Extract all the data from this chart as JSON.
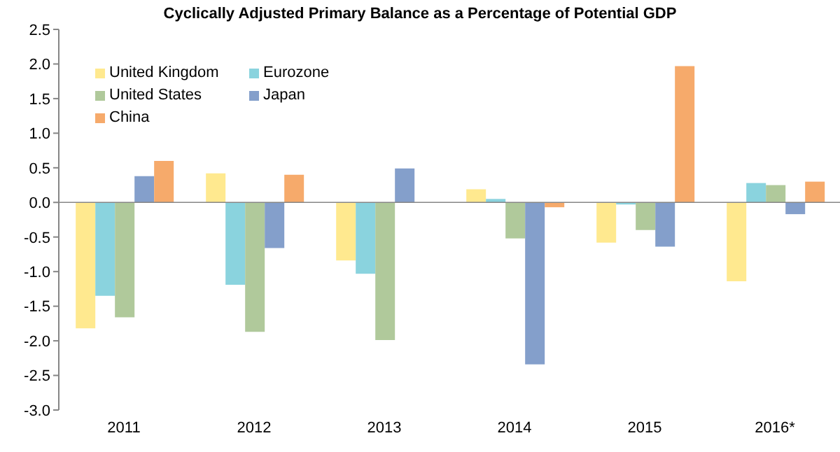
{
  "chart_data": {
    "type": "bar",
    "title": "Cyclically Adjusted Primary Balance as a Percentage of Potential GDP",
    "categories": [
      "2011",
      "2012",
      "2013",
      "2014",
      "2015",
      "2016*"
    ],
    "series": [
      {
        "name": "United Kingdom",
        "color": "#ffe98f",
        "values": [
          -1.82,
          0.42,
          -0.84,
          0.19,
          -0.58,
          -1.14
        ]
      },
      {
        "name": "Eurozone",
        "color": "#8ad3de",
        "values": [
          -1.35,
          -1.19,
          -1.03,
          0.05,
          -0.03,
          0.28
        ]
      },
      {
        "name": "United States",
        "color": "#b0c99b",
        "values": [
          -1.66,
          -1.87,
          -1.99,
          -0.52,
          -0.4,
          0.25
        ]
      },
      {
        "name": "Japan",
        "color": "#849fcb",
        "values": [
          0.38,
          -0.66,
          0.49,
          -2.34,
          -0.64,
          -0.17
        ]
      },
      {
        "name": "China",
        "color": "#f6aa6b",
        "values": [
          0.6,
          0.4,
          0,
          -0.07,
          1.97,
          0.3
        ]
      }
    ],
    "ylim": [
      -3,
      2.5
    ],
    "yticks": [
      {
        "value": -3,
        "label": "-3.0"
      },
      {
        "value": -2.5,
        "label": "-2.5"
      },
      {
        "value": -2,
        "label": "-2.0"
      },
      {
        "value": -1.5,
        "label": "-1.5"
      },
      {
        "value": -1,
        "label": "-1.0"
      },
      {
        "value": -0.5,
        "label": "-0.5"
      },
      {
        "value": 0,
        "label": "0.0"
      },
      {
        "value": 0.5,
        "label": "0.5"
      },
      {
        "value": 1,
        "label": "1.0"
      },
      {
        "value": 1.5,
        "label": "1.5"
      },
      {
        "value": 2,
        "label": "2.0"
      },
      {
        "value": 2.5,
        "label": "2.5"
      }
    ],
    "grid": false,
    "ref_lines": [
      {
        "axis": "y",
        "value": 0,
        "color": "#868686"
      }
    ],
    "legend": "top left"
  }
}
